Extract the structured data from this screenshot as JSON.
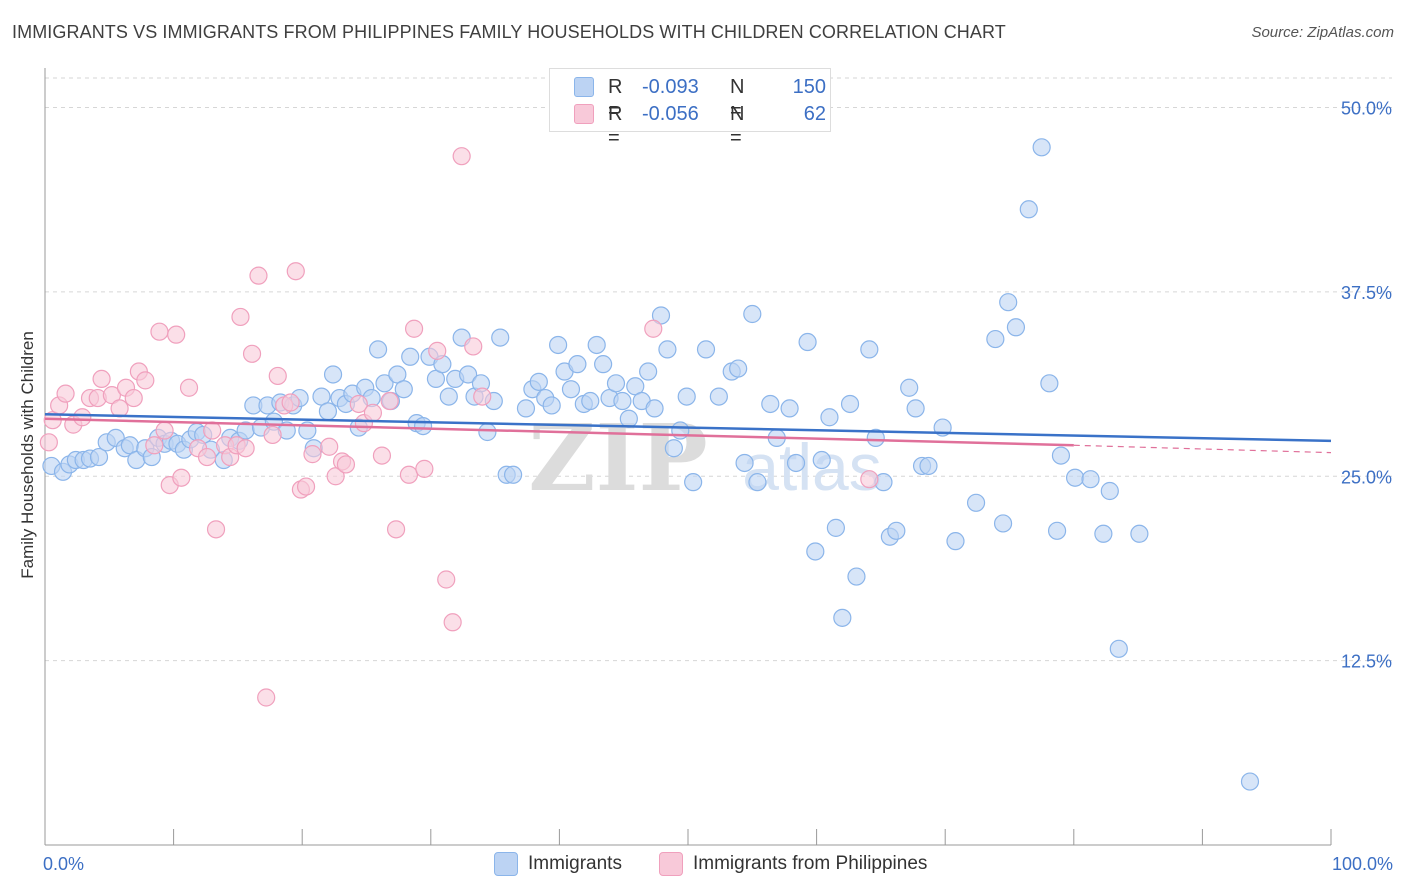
{
  "title": "IMMIGRANTS VS IMMIGRANTS FROM PHILIPPINES FAMILY HOUSEHOLDS WITH CHILDREN CORRELATION CHART",
  "source": "Source: ZipAtlas.com",
  "watermark": {
    "zip": "ZIP",
    "atlas": "atlas"
  },
  "legend": {
    "r_label": "R =",
    "n_label": "N =",
    "series": [
      {
        "name": "Immigrants",
        "r": "-0.093",
        "n": "150",
        "color": "#8bb5ea",
        "fill": "#bcd3f3",
        "line": "#3a72c8"
      },
      {
        "name": "Immigrants from Philippines",
        "r": "-0.056",
        "n": "62",
        "color": "#f0a0bd",
        "fill": "#f8c9d9",
        "line": "#e0709a"
      }
    ]
  },
  "chart_data": {
    "type": "scatter",
    "title": "IMMIGRANTS VS IMMIGRANTS FROM PHILIPPINES FAMILY HOUSEHOLDS WITH CHILDREN CORRELATION CHART",
    "xlabel": "",
    "ylabel": "Family Households with Children",
    "xlim": [
      0,
      100
    ],
    "ylim": [
      0,
      52
    ],
    "x_tick_labels": [
      {
        "value": 0,
        "label": "0.0%"
      },
      {
        "value": 100,
        "label": "100.0%"
      }
    ],
    "y_tick_labels": [
      {
        "value": 12.5,
        "label": "12.5%"
      },
      {
        "value": 25,
        "label": "25.0%"
      },
      {
        "value": 37.5,
        "label": "37.5%"
      },
      {
        "value": 50,
        "label": "50.0%"
      }
    ],
    "grid": true,
    "legend_position": "top-center",
    "series": [
      {
        "name": "Immigrants",
        "trend": {
          "x": [
            0,
            100
          ],
          "y": [
            29.2,
            27.4
          ]
        },
        "points": [
          [
            0.5,
            25.7
          ],
          [
            1.4,
            25.3
          ],
          [
            1.9,
            25.8
          ],
          [
            2.4,
            26.1
          ],
          [
            3.0,
            26.1
          ],
          [
            3.5,
            26.2
          ],
          [
            4.2,
            26.3
          ],
          [
            4.8,
            27.3
          ],
          [
            5.5,
            27.6
          ],
          [
            6.2,
            26.9
          ],
          [
            6.6,
            27.1
          ],
          [
            7.1,
            26.1
          ],
          [
            7.8,
            26.9
          ],
          [
            8.3,
            26.3
          ],
          [
            8.8,
            27.6
          ],
          [
            9.3,
            27.2
          ],
          [
            9.8,
            27.4
          ],
          [
            10.3,
            27.2
          ],
          [
            10.8,
            26.8
          ],
          [
            11.3,
            27.5
          ],
          [
            11.8,
            28.0
          ],
          [
            12.3,
            27.8
          ],
          [
            12.9,
            26.8
          ],
          [
            13.9,
            26.1
          ],
          [
            14.4,
            27.6
          ],
          [
            15.1,
            27.4
          ],
          [
            15.6,
            28.1
          ],
          [
            16.2,
            29.8
          ],
          [
            16.8,
            28.3
          ],
          [
            17.3,
            29.8
          ],
          [
            17.8,
            28.7
          ],
          [
            18.3,
            30.0
          ],
          [
            18.8,
            28.1
          ],
          [
            19.3,
            29.8
          ],
          [
            19.8,
            30.3
          ],
          [
            20.4,
            28.1
          ],
          [
            20.9,
            26.9
          ],
          [
            21.5,
            30.4
          ],
          [
            22.0,
            29.4
          ],
          [
            22.4,
            31.9
          ],
          [
            22.9,
            30.3
          ],
          [
            23.4,
            29.9
          ],
          [
            23.9,
            30.6
          ],
          [
            24.4,
            28.3
          ],
          [
            24.9,
            31.0
          ],
          [
            25.4,
            30.3
          ],
          [
            25.9,
            33.6
          ],
          [
            26.4,
            31.3
          ],
          [
            26.9,
            30.1
          ],
          [
            27.4,
            31.9
          ],
          [
            27.9,
            30.9
          ],
          [
            28.4,
            33.1
          ],
          [
            28.9,
            28.6
          ],
          [
            29.4,
            28.4
          ],
          [
            29.9,
            33.1
          ],
          [
            30.4,
            31.6
          ],
          [
            30.9,
            32.6
          ],
          [
            31.4,
            30.4
          ],
          [
            31.9,
            31.6
          ],
          [
            32.4,
            34.4
          ],
          [
            32.9,
            31.9
          ],
          [
            33.4,
            30.4
          ],
          [
            33.9,
            31.3
          ],
          [
            34.4,
            28.0
          ],
          [
            34.9,
            30.1
          ],
          [
            35.4,
            34.4
          ],
          [
            35.9,
            25.1
          ],
          [
            36.4,
            25.1
          ],
          [
            37.4,
            29.6
          ],
          [
            37.9,
            30.9
          ],
          [
            38.4,
            31.4
          ],
          [
            38.9,
            30.3
          ],
          [
            39.4,
            29.8
          ],
          [
            39.9,
            33.9
          ],
          [
            40.4,
            32.1
          ],
          [
            40.9,
            30.9
          ],
          [
            41.4,
            32.6
          ],
          [
            41.9,
            29.9
          ],
          [
            42.4,
            30.1
          ],
          [
            42.9,
            33.9
          ],
          [
            43.4,
            32.6
          ],
          [
            43.9,
            30.3
          ],
          [
            44.4,
            31.3
          ],
          [
            44.9,
            30.1
          ],
          [
            45.4,
            28.9
          ],
          [
            45.9,
            31.1
          ],
          [
            46.4,
            30.1
          ],
          [
            46.9,
            32.1
          ],
          [
            47.4,
            29.6
          ],
          [
            47.9,
            35.9
          ],
          [
            48.4,
            33.6
          ],
          [
            48.9,
            26.9
          ],
          [
            49.4,
            28.1
          ],
          [
            49.9,
            30.4
          ],
          [
            50.4,
            24.6
          ],
          [
            51.4,
            33.6
          ],
          [
            52.4,
            30.4
          ],
          [
            53.4,
            32.1
          ],
          [
            53.9,
            32.3
          ],
          [
            54.4,
            25.9
          ],
          [
            55.0,
            36.0
          ],
          [
            55.4,
            24.6
          ],
          [
            56.4,
            29.9
          ],
          [
            56.9,
            27.6
          ],
          [
            57.9,
            29.6
          ],
          [
            58.4,
            25.9
          ],
          [
            59.3,
            34.1
          ],
          [
            59.9,
            19.9
          ],
          [
            60.4,
            26.1
          ],
          [
            61.0,
            29.0
          ],
          [
            61.5,
            21.5
          ],
          [
            62.0,
            15.4
          ],
          [
            62.6,
            29.9
          ],
          [
            63.1,
            18.2
          ],
          [
            64.1,
            33.6
          ],
          [
            64.6,
            27.6
          ],
          [
            65.2,
            24.6
          ],
          [
            65.7,
            20.9
          ],
          [
            66.2,
            21.3
          ],
          [
            67.2,
            31.0
          ],
          [
            67.7,
            29.6
          ],
          [
            68.2,
            25.7
          ],
          [
            68.7,
            25.7
          ],
          [
            69.8,
            28.3
          ],
          [
            70.8,
            20.6
          ],
          [
            72.4,
            23.2
          ],
          [
            73.9,
            34.3
          ],
          [
            74.5,
            21.8
          ],
          [
            74.9,
            36.8
          ],
          [
            75.5,
            35.1
          ],
          [
            76.5,
            43.1
          ],
          [
            77.5,
            47.3
          ],
          [
            78.1,
            31.3
          ],
          [
            78.7,
            21.3
          ],
          [
            79.0,
            26.4
          ],
          [
            80.1,
            24.9
          ],
          [
            81.3,
            24.8
          ],
          [
            82.3,
            21.1
          ],
          [
            82.8,
            24.0
          ],
          [
            83.5,
            13.3
          ],
          [
            85.1,
            21.1
          ],
          [
            93.7,
            4.3
          ]
        ]
      },
      {
        "name": "Immigrants from Philippines",
        "trend": {
          "x": [
            0,
            80
          ],
          "y": [
            28.9,
            27.1
          ]
        },
        "trend_dashed_extension": {
          "x": [
            80,
            100
          ],
          "y": [
            27.1,
            26.6
          ]
        },
        "points": [
          [
            0.3,
            27.3
          ],
          [
            0.6,
            28.8
          ],
          [
            1.1,
            29.8
          ],
          [
            1.6,
            30.6
          ],
          [
            2.2,
            28.5
          ],
          [
            2.9,
            29.0
          ],
          [
            3.5,
            30.3
          ],
          [
            4.1,
            30.3
          ],
          [
            4.4,
            31.6
          ],
          [
            5.2,
            30.5
          ],
          [
            5.8,
            29.6
          ],
          [
            6.3,
            31.0
          ],
          [
            6.9,
            30.3
          ],
          [
            7.3,
            32.1
          ],
          [
            7.8,
            31.5
          ],
          [
            8.5,
            27.1
          ],
          [
            8.9,
            34.8
          ],
          [
            9.3,
            28.1
          ],
          [
            9.7,
            24.4
          ],
          [
            10.2,
            34.6
          ],
          [
            10.6,
            24.9
          ],
          [
            11.2,
            31.0
          ],
          [
            11.9,
            26.9
          ],
          [
            12.6,
            26.3
          ],
          [
            13.0,
            28.1
          ],
          [
            13.3,
            21.4
          ],
          [
            14.0,
            27.1
          ],
          [
            14.4,
            26.3
          ],
          [
            14.9,
            27.1
          ],
          [
            15.2,
            35.8
          ],
          [
            15.6,
            26.9
          ],
          [
            16.1,
            33.3
          ],
          [
            16.6,
            38.6
          ],
          [
            17.2,
            10.0
          ],
          [
            17.7,
            27.8
          ],
          [
            18.1,
            31.8
          ],
          [
            18.6,
            29.8
          ],
          [
            19.1,
            30.0
          ],
          [
            19.5,
            38.9
          ],
          [
            19.9,
            24.1
          ],
          [
            20.3,
            24.3
          ],
          [
            20.8,
            26.5
          ],
          [
            22.1,
            27.0
          ],
          [
            22.6,
            25.0
          ],
          [
            23.1,
            26.0
          ],
          [
            23.4,
            25.8
          ],
          [
            24.4,
            29.9
          ],
          [
            24.8,
            28.6
          ],
          [
            25.5,
            29.3
          ],
          [
            26.2,
            26.4
          ],
          [
            26.8,
            30.1
          ],
          [
            27.3,
            21.4
          ],
          [
            28.3,
            25.1
          ],
          [
            28.7,
            35.0
          ],
          [
            29.5,
            25.5
          ],
          [
            30.5,
            33.5
          ],
          [
            31.2,
            18.0
          ],
          [
            31.7,
            15.1
          ],
          [
            32.4,
            46.7
          ],
          [
            33.3,
            33.8
          ],
          [
            34.0,
            30.4
          ],
          [
            47.3,
            35.0
          ],
          [
            64.1,
            24.8
          ]
        ]
      }
    ]
  }
}
